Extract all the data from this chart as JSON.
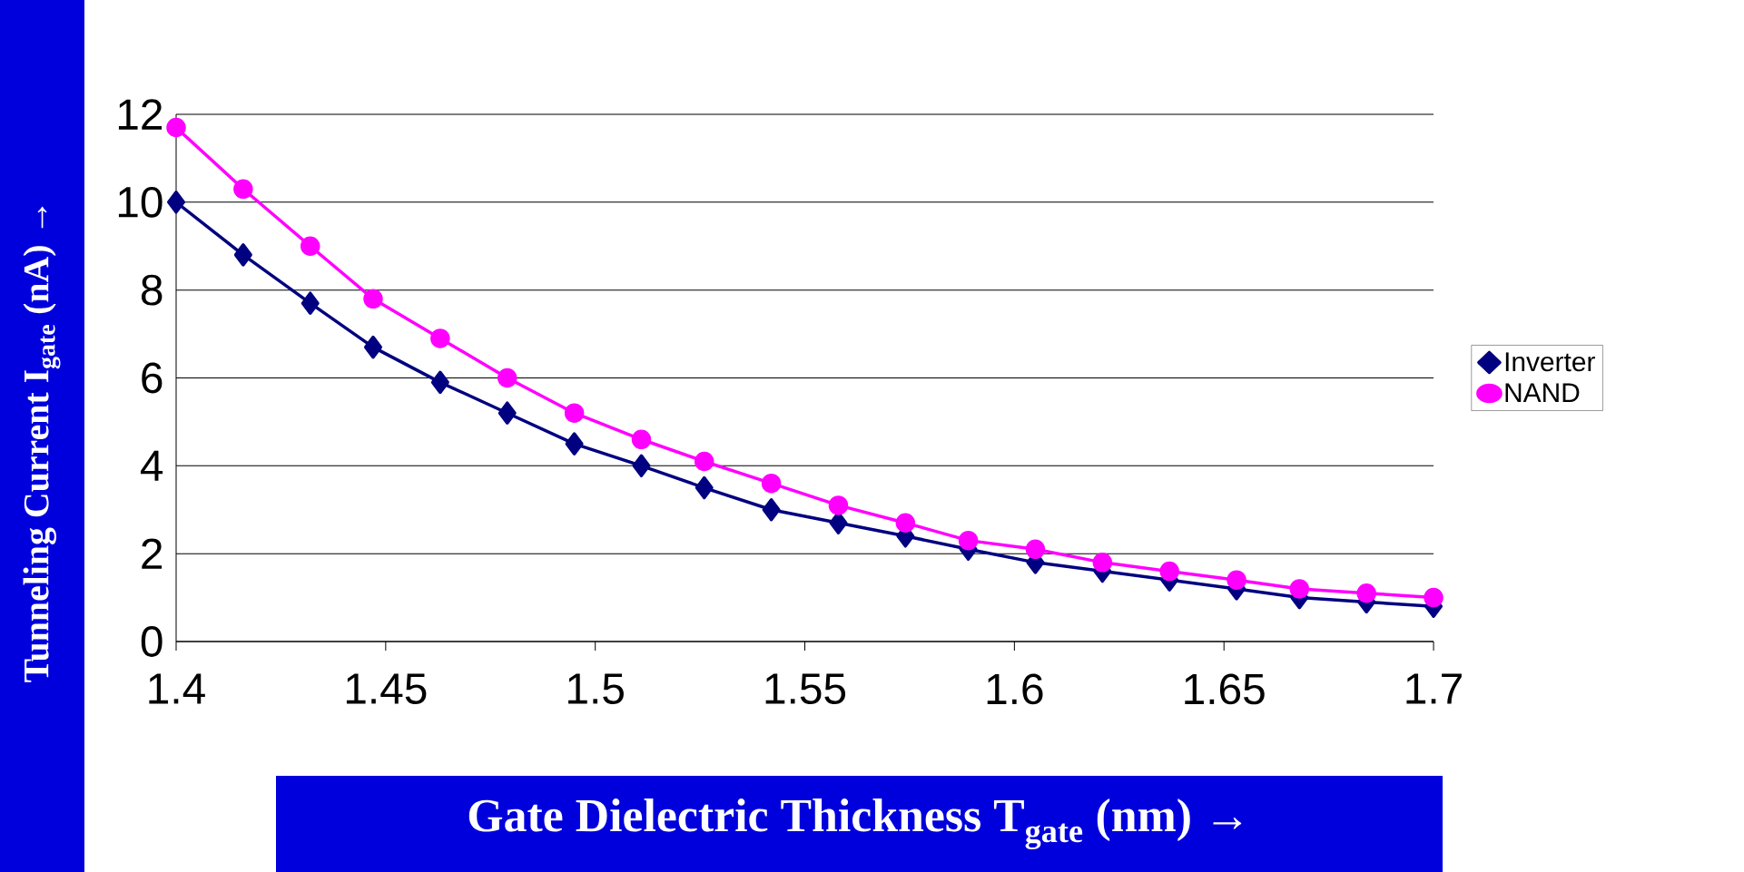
{
  "chart_data": {
    "type": "line",
    "xlabel": "Gate Dielectric Thickness T$_{gate}$  (nm) →",
    "ylabel": "Tunneling Current  I$_{gate}$ (nA) →",
    "x": [
      1.4,
      1.416,
      1.432,
      1.447,
      1.463,
      1.479,
      1.495,
      1.511,
      1.526,
      1.542,
      1.558,
      1.574,
      1.589,
      1.605,
      1.621,
      1.637,
      1.653,
      1.668,
      1.684,
      1.7
    ],
    "series": [
      {
        "name": "Inverter",
        "color": "#000080",
        "marker": "diamond",
        "values": [
          10.0,
          8.8,
          7.7,
          6.7,
          5.9,
          5.2,
          4.5,
          4.0,
          3.5,
          3.0,
          2.7,
          2.4,
          2.1,
          1.8,
          1.6,
          1.4,
          1.2,
          1.0,
          0.9,
          0.8
        ]
      },
      {
        "name": "NAND",
        "color": "#ff00ff",
        "marker": "circle",
        "values": [
          11.7,
          10.3,
          9.0,
          7.8,
          6.9,
          6.0,
          5.2,
          4.6,
          4.1,
          3.6,
          3.1,
          2.7,
          2.3,
          2.1,
          1.8,
          1.6,
          1.4,
          1.2,
          1.1,
          1.0
        ]
      }
    ],
    "xlim": [
      1.4,
      1.7
    ],
    "ylim": [
      0,
      12
    ],
    "xticks": [
      1.4,
      1.45,
      1.5,
      1.55,
      1.6,
      1.65,
      1.7
    ],
    "yticks": [
      0,
      2,
      4,
      6,
      8,
      10,
      12
    ],
    "grid": "y",
    "legend": "right",
    "line_style": "solid"
  }
}
